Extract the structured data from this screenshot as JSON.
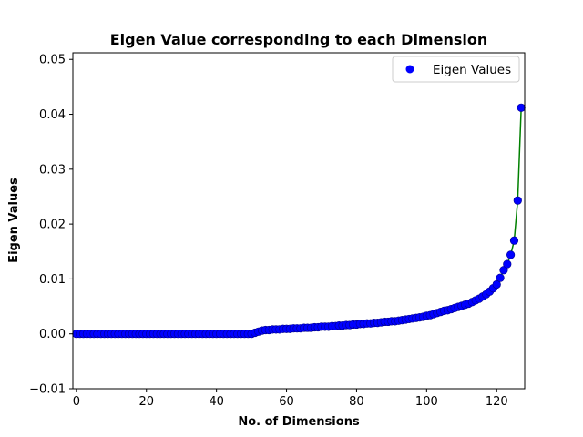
{
  "chart_data": {
    "type": "scatter",
    "title": "Eigen Value corresponding to each Dimension",
    "xlabel": "No. of Dimensions",
    "ylabel": "Eigen Values",
    "xlim": [
      -1,
      128
    ],
    "ylim": [
      -0.01,
      0.0512
    ],
    "xticks": [
      0,
      20,
      40,
      60,
      80,
      100,
      120
    ],
    "yticks": [
      -0.01,
      0.0,
      0.01,
      0.02,
      0.03,
      0.04,
      0.05
    ],
    "ytick_labels": [
      "−0.01",
      "0.00",
      "0.01",
      "0.02",
      "0.03",
      "0.04",
      "0.05"
    ],
    "grid": false,
    "legend": {
      "position": "top-right",
      "entries": [
        "Eigen Values"
      ]
    },
    "series": [
      {
        "name": "Eigen Values",
        "marker_color": "#0000ff",
        "marker_edge_color": "#00008b",
        "line_color": "#008000",
        "x": [
          0,
          1,
          2,
          3,
          4,
          5,
          6,
          7,
          8,
          9,
          10,
          11,
          12,
          13,
          14,
          15,
          16,
          17,
          18,
          19,
          20,
          21,
          22,
          23,
          24,
          25,
          26,
          27,
          28,
          29,
          30,
          31,
          32,
          33,
          34,
          35,
          36,
          37,
          38,
          39,
          40,
          41,
          42,
          43,
          44,
          45,
          46,
          47,
          48,
          49,
          50,
          51,
          52,
          53,
          54,
          55,
          56,
          57,
          58,
          59,
          60,
          61,
          62,
          63,
          64,
          65,
          66,
          67,
          68,
          69,
          70,
          71,
          72,
          73,
          74,
          75,
          76,
          77,
          78,
          79,
          80,
          81,
          82,
          83,
          84,
          85,
          86,
          87,
          88,
          89,
          90,
          91,
          92,
          93,
          94,
          95,
          96,
          97,
          98,
          99,
          100,
          101,
          102,
          103,
          104,
          105,
          106,
          107,
          108,
          109,
          110,
          111,
          112,
          113,
          114,
          115,
          116,
          117,
          118,
          119,
          120,
          121,
          122,
          123,
          124,
          125,
          126,
          127
        ],
        "y": [
          0,
          0,
          0,
          0,
          0,
          0,
          0,
          0,
          0,
          0,
          0,
          0,
          0,
          0,
          0,
          0,
          0,
          0,
          0,
          0,
          0,
          0,
          0,
          0,
          0,
          0,
          0,
          0,
          0,
          0,
          0,
          0,
          0,
          0,
          0,
          0,
          0,
          0,
          0,
          0,
          0,
          0,
          0,
          0,
          0,
          0,
          0,
          0,
          0,
          0,
          0,
          0.0002,
          0.0004,
          0.0006,
          0.0007,
          0.0007,
          0.0008,
          0.0008,
          0.0008,
          0.0009,
          0.0009,
          0.0009,
          0.001,
          0.001,
          0.001,
          0.0011,
          0.0011,
          0.0011,
          0.0012,
          0.0012,
          0.0013,
          0.0013,
          0.0013,
          0.0014,
          0.0014,
          0.0015,
          0.0015,
          0.0016,
          0.0016,
          0.0017,
          0.0017,
          0.0018,
          0.0018,
          0.0019,
          0.0019,
          0.002,
          0.002,
          0.0021,
          0.0022,
          0.0022,
          0.0023,
          0.0023,
          0.0024,
          0.0025,
          0.0026,
          0.0027,
          0.0028,
          0.0029,
          0.003,
          0.0031,
          0.0033,
          0.0034,
          0.0036,
          0.0038,
          0.004,
          0.0042,
          0.0043,
          0.0045,
          0.0047,
          0.0049,
          0.0051,
          0.0053,
          0.0055,
          0.0058,
          0.0061,
          0.0064,
          0.0068,
          0.0072,
          0.0077,
          0.0083,
          0.009,
          0.0102,
          0.0116,
          0.0127,
          0.0144,
          0.017,
          0.0243,
          0.0412
        ]
      }
    ]
  }
}
